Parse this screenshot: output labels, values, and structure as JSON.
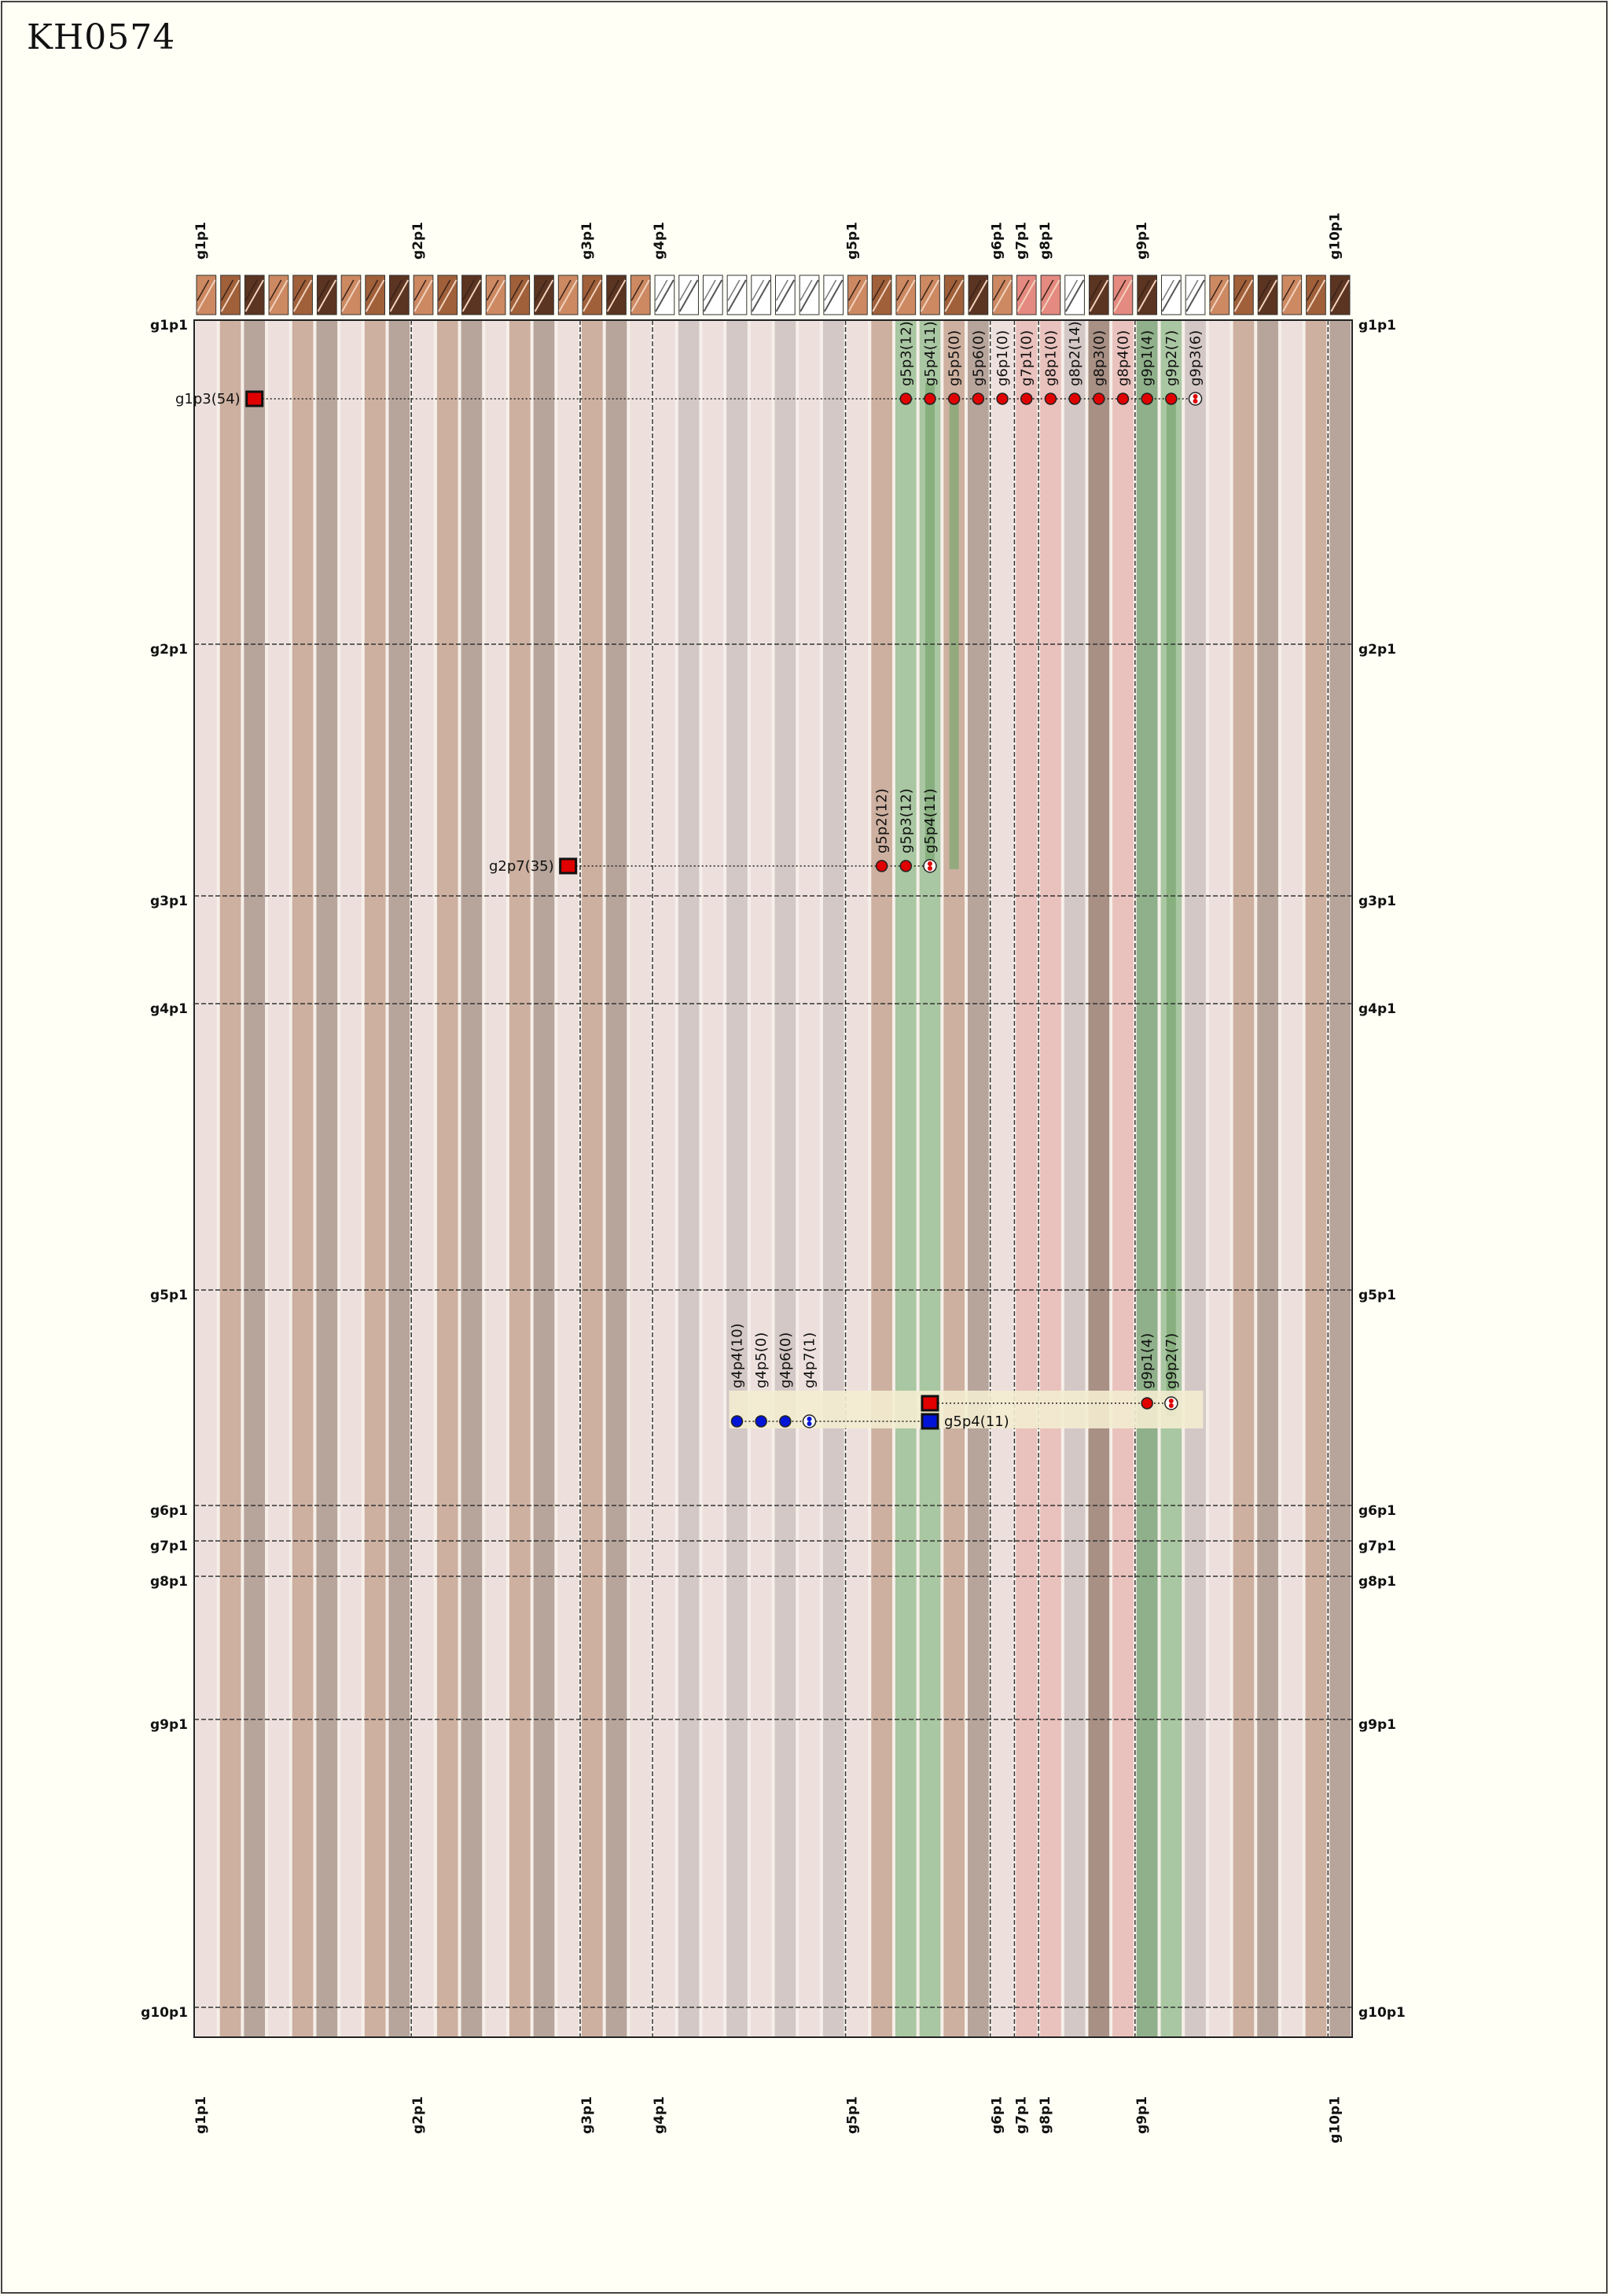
{
  "title": "KH0574",
  "groups": [
    "g1p1",
    "g2p1",
    "g3p1",
    "g4p1",
    "g5p1",
    "g6p1",
    "g7p1",
    "g8p1",
    "g9p1",
    "g10p1"
  ],
  "colors": {
    "stripe_a": "#b7a59c",
    "stripe_b": "#cdb0a0",
    "stripe_c": "#ede0dc",
    "stripe_light": "#d3c8c6",
    "stripe_pink": "#e9c1bd",
    "stripe_dark": "#a89085",
    "stripe_green": "#a9c7a2",
    "stripe_green_dark": "#8fb08a",
    "chip_dark": "#5b3422",
    "chip_mid": "#a0603a",
    "chip_light": "#cc8962",
    "chip_pink": "#e58a80",
    "chip_white": "#ffffff",
    "red_marker": "#e00000",
    "blue_marker": "#0014d8",
    "highlight": "#f3ecd0",
    "frame": "#333333"
  },
  "rows": [
    {
      "source": {
        "label": "g1p3(54)",
        "shape": "square-red"
      },
      "targets": [
        "g5p3(12)",
        "g5p4(11)",
        "g5p5(0)",
        "g5p6(0)",
        "g6p1(0)",
        "g7p1(0)",
        "g8p1(0)",
        "g8p2(14)",
        "g8p3(0)",
        "g8p4(0)",
        "g9p1(4)",
        "g9p2(7)",
        "g9p3(6)"
      ]
    },
    {
      "source": {
        "label": "g2p7(35)",
        "shape": "square-red"
      },
      "targets": [
        "g5p2(12)",
        "g5p3(12)",
        "g5p4(11)"
      ]
    },
    {
      "source": {
        "label": "g5p4(11)",
        "shape": "square-blue"
      },
      "red_targets": [
        "g9p1(4)",
        "g9p2(7)"
      ],
      "blue_targets": [
        "g4p4(10)",
        "g4p5(0)",
        "g4p6(0)",
        "g4p7(1)"
      ]
    }
  ]
}
